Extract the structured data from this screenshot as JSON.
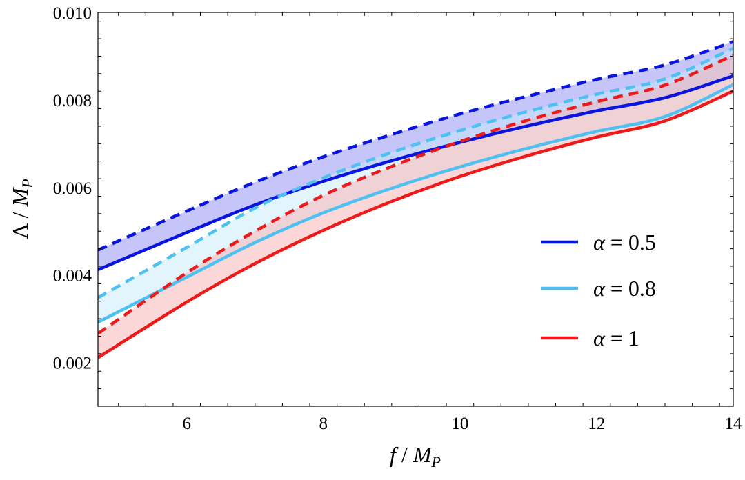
{
  "chart_data": {
    "type": "line",
    "title": "",
    "xlabel": {
      "var": "f",
      "unit_base": "M",
      "unit_sub": "P"
    },
    "ylabel": {
      "var": "Λ",
      "unit_base": "M",
      "unit_sub": "P"
    },
    "xlim": [
      4.7,
      14
    ],
    "ylim": [
      0.001,
      0.01
    ],
    "x_ticks": [
      6,
      8,
      10,
      12,
      14
    ],
    "x_tick_labels": [
      "6",
      "8",
      "10",
      "12",
      "14"
    ],
    "y_ticks": [
      0.002,
      0.004,
      0.006,
      0.008,
      0.01
    ],
    "y_tick_labels": [
      "0.002",
      "0.004",
      "0.006",
      "0.008",
      "0.010"
    ],
    "grid": false,
    "legend_position": "right",
    "series": [
      {
        "name": "α = 0.5",
        "alpha_label": "α",
        "value_label": "= 0.5",
        "color": "#0a14e0",
        "fill": "#8c8cf5",
        "x": [
          4.7,
          6,
          7,
          8,
          9,
          10,
          11,
          12,
          13,
          14
        ],
        "solid": [
          0.00412,
          0.00497,
          0.0056,
          0.00614,
          0.00661,
          0.00703,
          0.00741,
          0.00775,
          0.00805,
          0.00855
        ],
        "dashed": [
          0.00457,
          0.00546,
          0.00612,
          0.0067,
          0.00721,
          0.00768,
          0.00809,
          0.00847,
          0.0088,
          0.00933
        ]
      },
      {
        "name": "α = 0.8",
        "alpha_label": "α",
        "value_label": "= 0.8",
        "color": "#4ec0f2",
        "fill": "#c6ecfb",
        "x": [
          4.7,
          6,
          7,
          8,
          9,
          10,
          11,
          12,
          13,
          14
        ],
        "solid": [
          0.00292,
          0.00395,
          0.00474,
          0.00542,
          0.00598,
          0.00647,
          0.0069,
          0.00728,
          0.00762,
          0.00835
        ],
        "dashed": [
          0.00348,
          0.00463,
          0.00553,
          0.00622,
          0.0068,
          0.0073,
          0.00774,
          0.00813,
          0.00848,
          0.00918
        ]
      },
      {
        "name": "α = 1",
        "alpha_label": "α",
        "value_label": "= 1",
        "color": "#ee1a1a",
        "fill": "#f9b0b0",
        "x": [
          4.7,
          6,
          7,
          8,
          9,
          10,
          11,
          12,
          13,
          14
        ],
        "solid": [
          0.00211,
          0.00338,
          0.00426,
          0.00502,
          0.00568,
          0.00625,
          0.00673,
          0.00715,
          0.00752,
          0.0082
        ],
        "dashed": [
          0.00266,
          0.00405,
          0.005,
          0.00582,
          0.00648,
          0.00705,
          0.00754,
          0.00796,
          0.00834,
          0.00902
        ]
      }
    ]
  }
}
